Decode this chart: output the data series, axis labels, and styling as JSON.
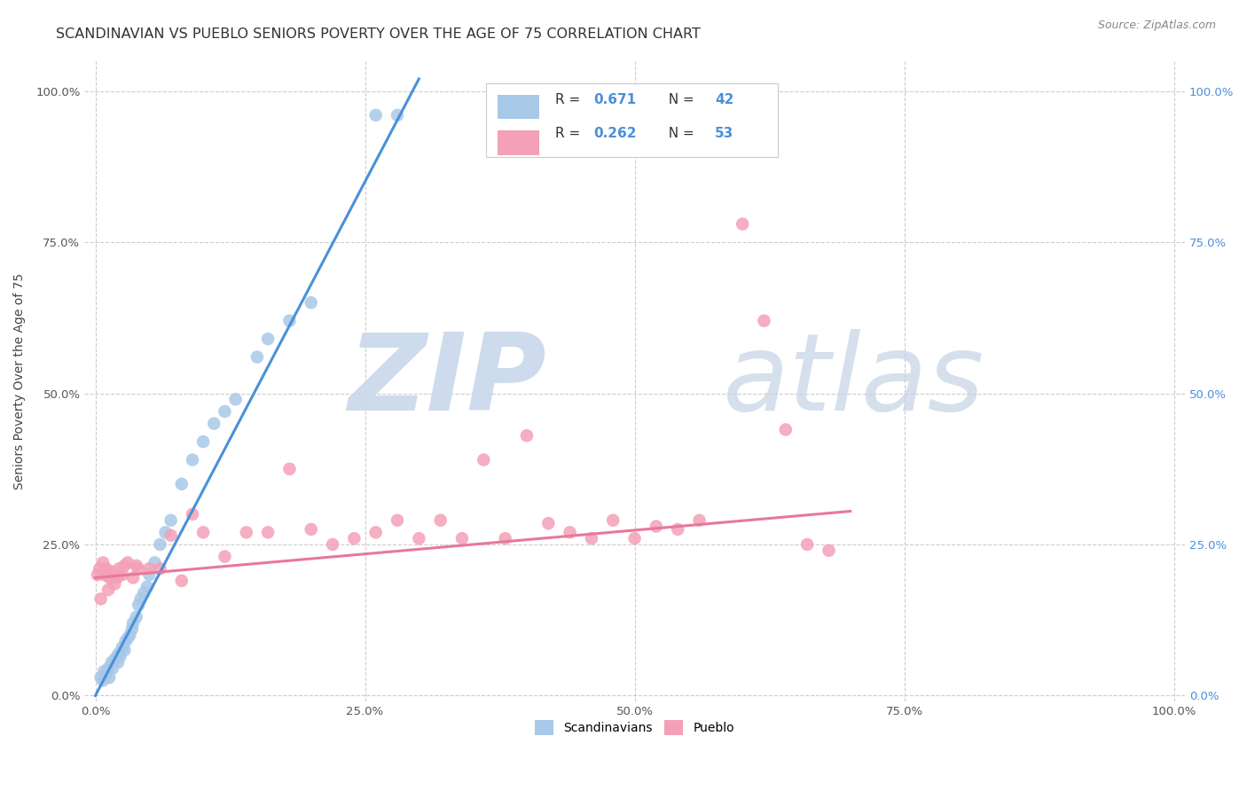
{
  "title": "SCANDINAVIAN VS PUEBLO SENIORS POVERTY OVER THE AGE OF 75 CORRELATION CHART",
  "source": "Source: ZipAtlas.com",
  "ylabel": "Seniors Poverty Over the Age of 75",
  "r1": 0.671,
  "n1": 42,
  "r2": 0.262,
  "n2": 53,
  "color1": "#A8C8E8",
  "color2": "#F4A0B8",
  "line_color1": "#4A90D9",
  "line_color2": "#E8789A",
  "right_tick_color": "#4A90D9",
  "title_fontsize": 11.5,
  "axis_tick_fontsize": 9.5,
  "ylabel_fontsize": 10,
  "source_fontsize": 9,
  "legend_fontsize": 10,
  "annot_fontsize": 11,
  "scatter1_x": [
    0.005,
    0.007,
    0.008,
    0.01,
    0.012,
    0.013,
    0.015,
    0.016,
    0.018,
    0.02,
    0.021,
    0.022,
    0.023,
    0.025,
    0.027,
    0.028,
    0.03,
    0.032,
    0.034,
    0.035,
    0.038,
    0.04,
    0.042,
    0.045,
    0.048,
    0.05,
    0.055,
    0.06,
    0.065,
    0.07,
    0.08,
    0.09,
    0.1,
    0.11,
    0.12,
    0.13,
    0.15,
    0.16,
    0.18,
    0.2,
    0.26,
    0.28
  ],
  "scatter1_y": [
    0.03,
    0.025,
    0.04,
    0.035,
    0.045,
    0.03,
    0.055,
    0.045,
    0.06,
    0.065,
    0.055,
    0.07,
    0.065,
    0.08,
    0.075,
    0.09,
    0.095,
    0.1,
    0.11,
    0.12,
    0.13,
    0.15,
    0.16,
    0.17,
    0.18,
    0.2,
    0.22,
    0.25,
    0.27,
    0.29,
    0.35,
    0.39,
    0.42,
    0.45,
    0.47,
    0.49,
    0.56,
    0.59,
    0.62,
    0.65,
    0.96,
    0.96
  ],
  "scatter2_x": [
    0.002,
    0.004,
    0.005,
    0.007,
    0.008,
    0.01,
    0.012,
    0.013,
    0.015,
    0.016,
    0.018,
    0.02,
    0.022,
    0.025,
    0.027,
    0.03,
    0.035,
    0.038,
    0.04,
    0.05,
    0.06,
    0.07,
    0.08,
    0.09,
    0.1,
    0.12,
    0.14,
    0.16,
    0.18,
    0.2,
    0.22,
    0.24,
    0.26,
    0.28,
    0.3,
    0.32,
    0.34,
    0.36,
    0.38,
    0.4,
    0.42,
    0.44,
    0.46,
    0.48,
    0.5,
    0.52,
    0.54,
    0.56,
    0.6,
    0.62,
    0.64,
    0.66,
    0.68
  ],
  "scatter2_y": [
    0.2,
    0.21,
    0.16,
    0.22,
    0.2,
    0.21,
    0.175,
    0.195,
    0.205,
    0.195,
    0.185,
    0.195,
    0.21,
    0.2,
    0.215,
    0.22,
    0.195,
    0.215,
    0.21,
    0.21,
    0.21,
    0.265,
    0.19,
    0.3,
    0.27,
    0.23,
    0.27,
    0.27,
    0.375,
    0.275,
    0.25,
    0.26,
    0.27,
    0.29,
    0.26,
    0.29,
    0.26,
    0.39,
    0.26,
    0.43,
    0.285,
    0.27,
    0.26,
    0.29,
    0.26,
    0.28,
    0.275,
    0.29,
    0.78,
    0.62,
    0.44,
    0.25,
    0.24
  ]
}
